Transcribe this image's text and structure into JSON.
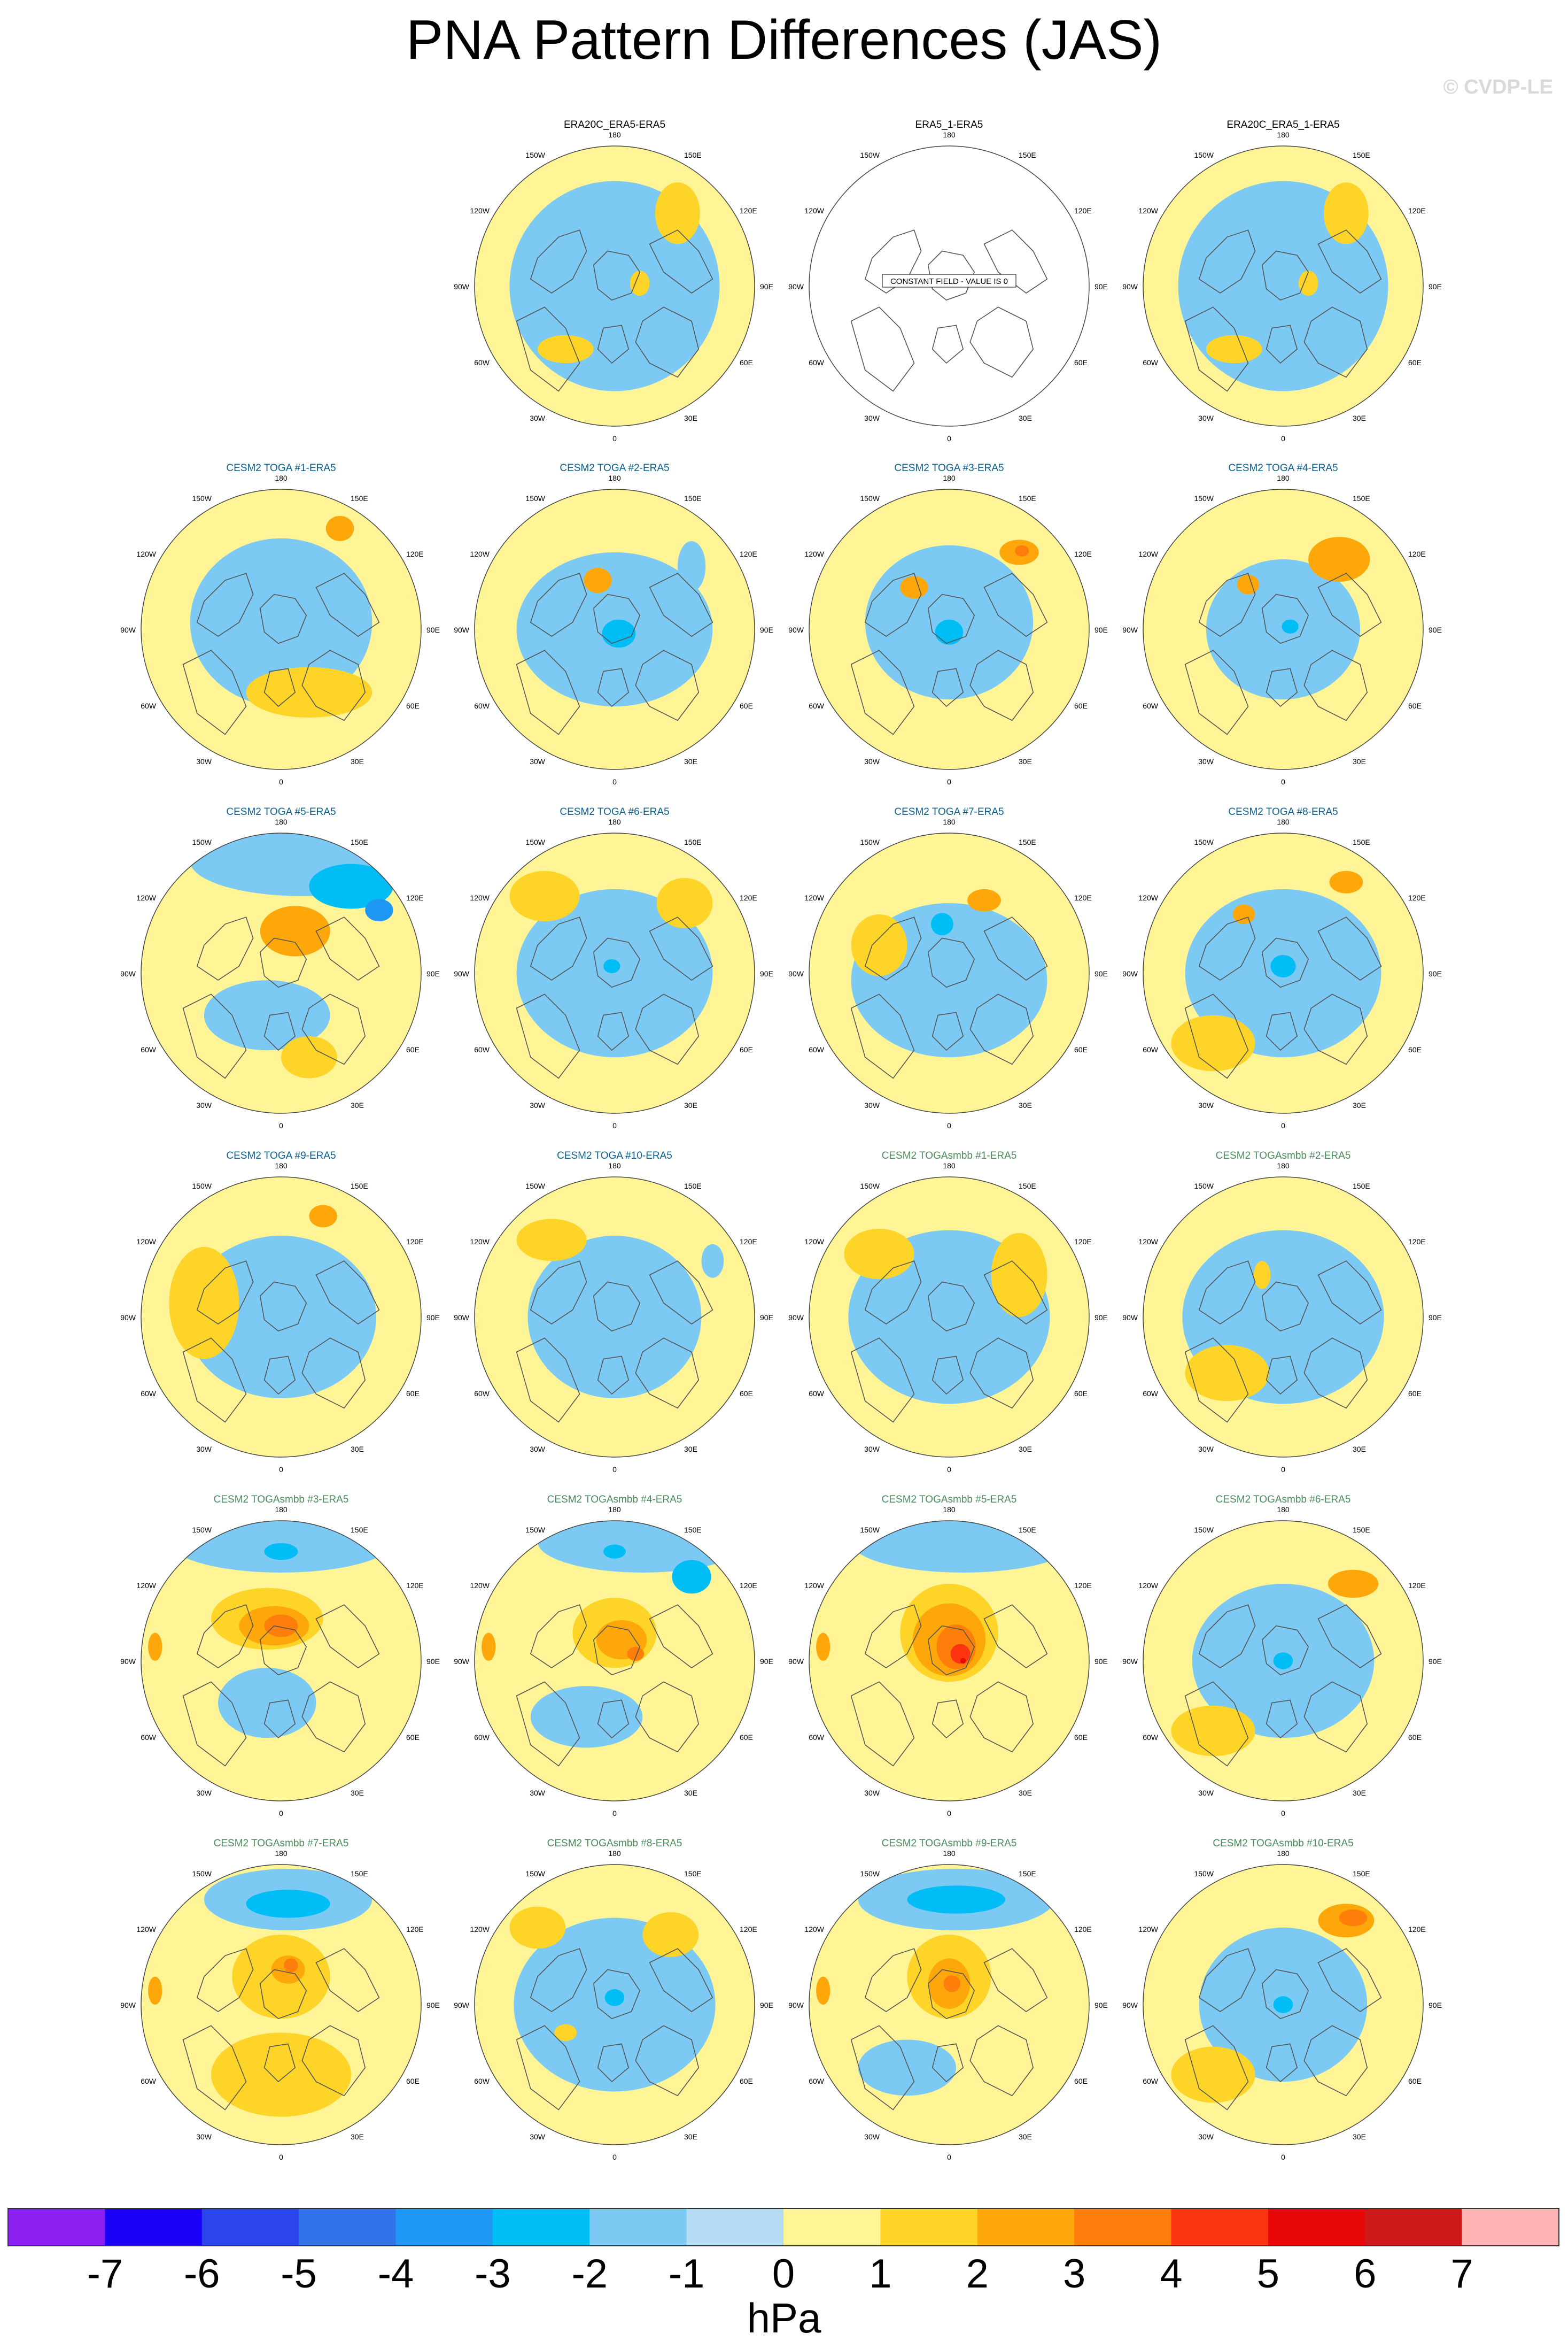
{
  "title": "PNA Pattern Differences (JAS)",
  "watermark": "© CVDP-LE",
  "chart_data": {
    "type": "heatmap",
    "projection": "north polar stereographic",
    "variable": "PNA pattern difference",
    "units": "hPa",
    "colors": {
      "ocean_blue": "#b3dcf2",
      "light_yellow": "#fff596",
      "title_obs": "#000000",
      "title_toga": "#0a5f8f",
      "title_togasmbb": "#4a8a5a",
      "coast": "#555555"
    },
    "longitude_labels": [
      "180",
      "150E",
      "120E",
      "90E",
      "60E",
      "30E",
      "0",
      "30W",
      "60W",
      "90W",
      "120W",
      "150W"
    ],
    "constant_field_label": "CONSTANT FIELD - VALUE IS 0",
    "panels": [
      {
        "title": "ERA20C_ERA5-ERA5",
        "group": "obs",
        "constant": false,
        "blobs": [
          [
            0.0,
            0.0,
            0.75,
            0.75,
            -1
          ],
          [
            0.45,
            0.52,
            0.16,
            0.22,
            1
          ],
          [
            -0.35,
            -0.45,
            0.2,
            0.1,
            1
          ],
          [
            0.18,
            0.02,
            0.07,
            0.09,
            1
          ]
        ]
      },
      {
        "title": "ERA5_1-ERA5",
        "group": "obs",
        "constant": true,
        "blobs": []
      },
      {
        "title": "ERA20C_ERA5_1-ERA5",
        "group": "obs",
        "constant": false,
        "blobs": [
          [
            0.0,
            0.0,
            0.75,
            0.75,
            -1
          ],
          [
            0.45,
            0.52,
            0.16,
            0.22,
            1
          ],
          [
            -0.35,
            -0.45,
            0.2,
            0.1,
            1
          ],
          [
            0.18,
            0.02,
            0.07,
            0.09,
            1
          ]
        ]
      },
      {
        "title": "CESM2 TOGA #1-ERA5",
        "group": "toga",
        "constant": false,
        "blobs": [
          [
            0.0,
            0.05,
            0.65,
            0.6,
            -1
          ],
          [
            0.42,
            0.72,
            0.1,
            0.09,
            2
          ],
          [
            0.05,
            0.05,
            0.18,
            0.16,
            -1
          ],
          [
            0.2,
            -0.45,
            0.45,
            0.18,
            1
          ]
        ]
      },
      {
        "title": "CESM2 TOGA #2-ERA5",
        "group": "toga",
        "constant": false,
        "blobs": [
          [
            0.0,
            0.0,
            0.7,
            0.55,
            -1
          ],
          [
            0.02,
            -0.02,
            0.2,
            0.17,
            -1
          ],
          [
            0.03,
            -0.03,
            0.12,
            0.1,
            -2
          ],
          [
            -0.12,
            0.35,
            0.1,
            0.09,
            2
          ],
          [
            0.55,
            0.45,
            0.1,
            0.18,
            -1
          ]
        ]
      },
      {
        "title": "CESM2 TOGA #3-ERA5",
        "group": "toga",
        "constant": false,
        "blobs": [
          [
            0.0,
            0.05,
            0.6,
            0.55,
            -1
          ],
          [
            0.02,
            -0.02,
            0.16,
            0.14,
            -1
          ],
          [
            0.0,
            -0.02,
            0.1,
            0.09,
            -2
          ],
          [
            -0.25,
            0.3,
            0.1,
            0.08,
            2
          ],
          [
            0.5,
            0.55,
            0.14,
            0.09,
            2
          ],
          [
            0.52,
            0.56,
            0.05,
            0.04,
            3
          ]
        ]
      },
      {
        "title": "CESM2 TOGA #4-ERA5",
        "group": "toga",
        "constant": false,
        "blobs": [
          [
            0.0,
            0.0,
            0.55,
            0.5,
            -1
          ],
          [
            0.05,
            0.02,
            0.12,
            0.11,
            -1
          ],
          [
            0.05,
            0.02,
            0.06,
            0.05,
            -2
          ],
          [
            0.4,
            0.5,
            0.22,
            0.16,
            2
          ],
          [
            -0.25,
            0.32,
            0.08,
            0.07,
            2
          ]
        ]
      },
      {
        "title": "CESM2 TOGA #5-ERA5",
        "group": "toga",
        "constant": false,
        "blobs": [
          [
            0.15,
            0.8,
            0.8,
            0.25,
            -1
          ],
          [
            0.5,
            0.62,
            0.3,
            0.16,
            -2
          ],
          [
            0.7,
            0.45,
            0.1,
            0.08,
            -3
          ],
          [
            0.1,
            0.3,
            0.25,
            0.18,
            2
          ],
          [
            -0.1,
            -0.3,
            0.45,
            0.25,
            -1
          ],
          [
            0.2,
            -0.6,
            0.2,
            0.15,
            1
          ]
        ]
      },
      {
        "title": "CESM2 TOGA #6-ERA5",
        "group": "toga",
        "constant": false,
        "blobs": [
          [
            0.0,
            0.0,
            0.7,
            0.6,
            -1
          ],
          [
            -0.02,
            0.05,
            0.12,
            0.1,
            -1
          ],
          [
            -0.02,
            0.05,
            0.06,
            0.05,
            -2
          ],
          [
            0.5,
            0.5,
            0.2,
            0.18,
            1
          ],
          [
            -0.5,
            0.55,
            0.25,
            0.18,
            1
          ]
        ]
      },
      {
        "title": "CESM2 TOGA #7-ERA5",
        "group": "toga",
        "constant": false,
        "blobs": [
          [
            0.0,
            -0.05,
            0.7,
            0.55,
            -1
          ],
          [
            -0.05,
            0.32,
            0.16,
            0.16,
            -1
          ],
          [
            -0.05,
            0.35,
            0.08,
            0.08,
            -2
          ],
          [
            0.25,
            0.52,
            0.12,
            0.08,
            2
          ],
          [
            -0.5,
            0.2,
            0.2,
            0.22,
            1
          ]
        ]
      },
      {
        "title": "CESM2 TOGA #8-ERA5",
        "group": "toga",
        "constant": false,
        "blobs": [
          [
            0.0,
            0.0,
            0.7,
            0.6,
            -1
          ],
          [
            0.0,
            0.05,
            0.16,
            0.14,
            -1
          ],
          [
            0.0,
            0.05,
            0.09,
            0.08,
            -2
          ],
          [
            -0.28,
            0.42,
            0.08,
            0.07,
            2
          ],
          [
            0.45,
            0.65,
            0.12,
            0.08,
            2
          ],
          [
            -0.5,
            -0.5,
            0.3,
            0.2,
            1
          ]
        ]
      },
      {
        "title": "CESM2 TOGA #9-ERA5",
        "group": "toga",
        "constant": false,
        "blobs": [
          [
            0.0,
            0.0,
            0.68,
            0.58,
            -1
          ],
          [
            0.0,
            0.0,
            0.2,
            0.16,
            -1
          ],
          [
            0.3,
            0.72,
            0.1,
            0.08,
            2
          ],
          [
            -0.55,
            0.1,
            0.25,
            0.4,
            1
          ]
        ]
      },
      {
        "title": "CESM2 TOGA #10-ERA5",
        "group": "toga",
        "constant": false,
        "blobs": [
          [
            0.0,
            0.0,
            0.62,
            0.58,
            -1
          ],
          [
            0.0,
            0.12,
            0.16,
            0.14,
            -1
          ],
          [
            0.7,
            0.4,
            0.08,
            0.12,
            -1
          ],
          [
            -0.45,
            0.55,
            0.25,
            0.15,
            1
          ]
        ]
      },
      {
        "title": "CESM2 TOGAsmbb #1-ERA5",
        "group": "togasmbb",
        "constant": false,
        "blobs": [
          [
            0.0,
            0.0,
            0.72,
            0.62,
            -1
          ],
          [
            0.0,
            0.15,
            0.1,
            0.09,
            -1
          ],
          [
            0.5,
            0.3,
            0.2,
            0.3,
            1
          ],
          [
            -0.5,
            0.45,
            0.25,
            0.18,
            1
          ]
        ]
      },
      {
        "title": "CESM2 TOGAsmbb #2-ERA5",
        "group": "togasmbb",
        "constant": false,
        "blobs": [
          [
            0.0,
            0.0,
            0.72,
            0.62,
            -1
          ],
          [
            0.15,
            0.4,
            0.08,
            0.16,
            -1
          ],
          [
            -0.25,
            -0.28,
            0.06,
            0.05,
            -1
          ],
          [
            -0.15,
            0.3,
            0.06,
            0.1,
            1
          ],
          [
            -0.4,
            -0.4,
            0.3,
            0.2,
            1
          ]
        ]
      },
      {
        "title": "CESM2 TOGAsmbb #3-ERA5",
        "group": "togasmbb",
        "constant": false,
        "blobs": [
          [
            0.0,
            0.85,
            0.8,
            0.22,
            -1
          ],
          [
            0.0,
            0.78,
            0.12,
            0.06,
            -2
          ],
          [
            -0.1,
            0.3,
            0.4,
            0.22,
            1
          ],
          [
            -0.05,
            0.25,
            0.25,
            0.14,
            2
          ],
          [
            0.0,
            0.25,
            0.12,
            0.08,
            3
          ],
          [
            -0.1,
            -0.3,
            0.35,
            0.25,
            -1
          ],
          [
            -0.9,
            0.1,
            0.05,
            0.1,
            2
          ]
        ]
      },
      {
        "title": "CESM2 TOGAsmbb #4-ERA5",
        "group": "togasmbb",
        "constant": false,
        "blobs": [
          [
            0.2,
            0.85,
            0.75,
            0.22,
            -1
          ],
          [
            0.0,
            0.78,
            0.08,
            0.05,
            -2
          ],
          [
            0.55,
            0.6,
            0.14,
            0.12,
            -2
          ],
          [
            0.0,
            0.2,
            0.3,
            0.25,
            1
          ],
          [
            0.05,
            0.15,
            0.18,
            0.14,
            2
          ],
          [
            0.15,
            0.05,
            0.06,
            0.05,
            3
          ],
          [
            -0.9,
            0.1,
            0.05,
            0.1,
            2
          ],
          [
            -0.2,
            -0.4,
            0.4,
            0.22,
            -1
          ]
        ]
      },
      {
        "title": "CESM2 TOGAsmbb #5-ERA5",
        "group": "togasmbb",
        "constant": false,
        "blobs": [
          [
            0.1,
            0.85,
            0.8,
            0.22,
            -1
          ],
          [
            0.0,
            0.2,
            0.35,
            0.35,
            1
          ],
          [
            0.0,
            0.15,
            0.26,
            0.26,
            2
          ],
          [
            0.05,
            0.1,
            0.14,
            0.16,
            3
          ],
          [
            0.08,
            0.05,
            0.07,
            0.07,
            4
          ],
          [
            0.1,
            0.0,
            0.02,
            0.02,
            5
          ],
          [
            -0.9,
            0.1,
            0.05,
            0.1,
            2
          ]
        ]
      },
      {
        "title": "CESM2 TOGAsmbb #6-ERA5",
        "group": "togasmbb",
        "constant": false,
        "blobs": [
          [
            0.0,
            0.0,
            0.65,
            0.55,
            -1
          ],
          [
            0.0,
            0.0,
            0.14,
            0.14,
            -1
          ],
          [
            0.0,
            0.0,
            0.07,
            0.06,
            -2
          ],
          [
            0.5,
            0.55,
            0.18,
            0.1,
            2
          ],
          [
            -0.5,
            -0.5,
            0.3,
            0.18,
            1
          ]
        ]
      },
      {
        "title": "CESM2 TOGAsmbb #7-ERA5",
        "group": "togasmbb",
        "constant": false,
        "blobs": [
          [
            0.05,
            0.75,
            0.6,
            0.22,
            -1
          ],
          [
            0.05,
            0.72,
            0.3,
            0.1,
            -2
          ],
          [
            0.0,
            0.2,
            0.35,
            0.3,
            1
          ],
          [
            0.05,
            0.25,
            0.12,
            0.1,
            2
          ],
          [
            0.07,
            0.28,
            0.05,
            0.05,
            3
          ],
          [
            -0.9,
            0.1,
            0.05,
            0.1,
            2
          ],
          [
            0.0,
            -0.5,
            0.5,
            0.3,
            1
          ]
        ]
      },
      {
        "title": "CESM2 TOGAsmbb #8-ERA5",
        "group": "togasmbb",
        "constant": false,
        "blobs": [
          [
            0.0,
            0.0,
            0.72,
            0.62,
            -1
          ],
          [
            0.0,
            0.05,
            0.14,
            0.12,
            -1
          ],
          [
            0.0,
            0.05,
            0.07,
            0.06,
            -2
          ],
          [
            -0.35,
            -0.2,
            0.08,
            0.06,
            1
          ],
          [
            0.4,
            0.5,
            0.2,
            0.16,
            1
          ],
          [
            -0.55,
            0.55,
            0.2,
            0.15,
            1
          ]
        ]
      },
      {
        "title": "CESM2 TOGAsmbb #9-ERA5",
        "group": "togasmbb",
        "constant": false,
        "blobs": [
          [
            0.05,
            0.75,
            0.7,
            0.22,
            -1
          ],
          [
            0.05,
            0.75,
            0.35,
            0.1,
            -2
          ],
          [
            0.0,
            0.2,
            0.3,
            0.3,
            1
          ],
          [
            0.0,
            0.15,
            0.15,
            0.18,
            2
          ],
          [
            0.02,
            0.15,
            0.06,
            0.06,
            3
          ],
          [
            -0.9,
            0.1,
            0.05,
            0.1,
            2
          ],
          [
            -0.3,
            -0.45,
            0.35,
            0.2,
            -1
          ]
        ]
      },
      {
        "title": "CESM2 TOGAsmbb #10-ERA5",
        "group": "togasmbb",
        "constant": false,
        "blobs": [
          [
            0.0,
            0.0,
            0.6,
            0.55,
            -1
          ],
          [
            0.0,
            0.0,
            0.14,
            0.13,
            -1
          ],
          [
            0.0,
            0.0,
            0.07,
            0.06,
            -2
          ],
          [
            0.45,
            0.6,
            0.2,
            0.12,
            2
          ],
          [
            0.5,
            0.62,
            0.1,
            0.06,
            3
          ],
          [
            -0.5,
            -0.5,
            0.3,
            0.2,
            1
          ]
        ]
      }
    ],
    "colorbar": {
      "labels": [
        "-7",
        "-6",
        "-5",
        "-4",
        "-3",
        "-2",
        "-1",
        "0",
        "1",
        "2",
        "3",
        "4",
        "5",
        "6",
        "7"
      ],
      "colors": [
        "#8a1ff0",
        "#1a00f5",
        "#2c45ea",
        "#2f72e9",
        "#1e96f4",
        "#00bdf5",
        "#7ccaf3",
        "#b3dcf2",
        "#fff596",
        "#fdd427",
        "#fda70a",
        "#fd7e0a",
        "#fd3410",
        "#e80808",
        "#cc1a1a",
        "#ffb3b3"
      ],
      "unit_label": "hPa"
    }
  }
}
